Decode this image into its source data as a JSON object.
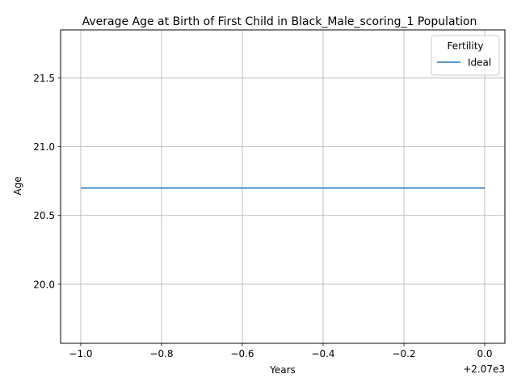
{
  "chart_data": {
    "type": "line",
    "title": "Average Age at Birth of First Child in Black_Male_scoring_1 Population",
    "xlabel": "Years",
    "ylabel": "Age",
    "x_offset_label": "+2.07e3",
    "x_tick_labels": [
      "−1.0",
      "−0.8",
      "−0.6",
      "−0.4",
      "−0.2",
      "0.0"
    ],
    "x_ticks": [
      -1.0,
      -0.8,
      -0.6,
      -0.4,
      -0.2,
      0.0
    ],
    "y_tick_labels": [
      "20.0",
      "20.5",
      "21.0",
      "21.5"
    ],
    "y_ticks": [
      20.0,
      20.5,
      21.0,
      21.5
    ],
    "xlim": [
      -1.05,
      0.05
    ],
    "ylim": [
      19.57,
      21.85
    ],
    "grid": true,
    "legend": {
      "title": "Fertility",
      "placement": "top-right"
    },
    "series": [
      {
        "name": "Ideal",
        "color": "#1f77b4",
        "x": [
          -1.0,
          0.0
        ],
        "y": [
          20.7,
          20.7
        ]
      }
    ]
  }
}
